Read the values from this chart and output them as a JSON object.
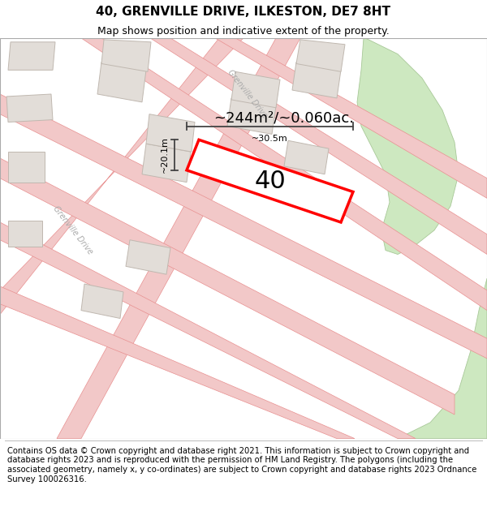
{
  "title": "40, GRENVILLE DRIVE, ILKESTON, DE7 8HT",
  "subtitle": "Map shows position and indicative extent of the property.",
  "footer": "Contains OS data © Crown copyright and database right 2021. This information is subject to Crown copyright and database rights 2023 and is reproduced with the permission of HM Land Registry. The polygons (including the associated geometry, namely x, y co-ordinates) are subject to Crown copyright and database rights 2023 Ordnance Survey 100026316.",
  "area_label": "~244m²/~0.060ac.",
  "number_label": "40",
  "width_label": "~30.5m",
  "height_label": "~20.1m",
  "map_bg": "#f5f1ec",
  "road_fill": "#f2c8c8",
  "road_edge": "#e89090",
  "highlight_color": "#ff0000",
  "building_fill": "#e2ddd8",
  "building_edge": "#c0b8b0",
  "green_fill": "#cde8c0",
  "green_edge": "#a8c898",
  "title_fontsize": 11,
  "subtitle_fontsize": 9,
  "footer_fontsize": 7.2,
  "label_color": "#aaaaaa",
  "dim_color": "#444444"
}
